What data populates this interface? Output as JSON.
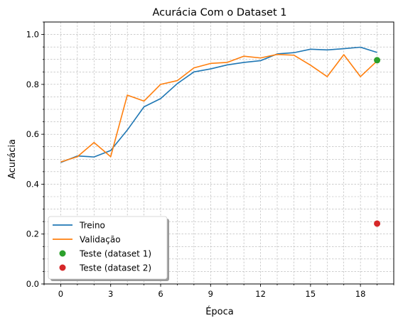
{
  "chart_data": {
    "type": "line",
    "title": "Acurácia Com o Dataset 1",
    "xlabel": "Época",
    "ylabel": "Acurácia",
    "xlim": [
      -1,
      20
    ],
    "ylim": [
      0,
      1.05
    ],
    "xticks": [
      0,
      3,
      6,
      9,
      12,
      15,
      18
    ],
    "yticks": [
      0.0,
      0.2,
      0.4,
      0.6,
      0.8,
      1.0
    ],
    "xtick_labels": [
      "0",
      "3",
      "6",
      "9",
      "12",
      "15",
      "18"
    ],
    "ytick_labels": [
      "0.0",
      "0.2",
      "0.4",
      "0.6",
      "0.8",
      "1.0"
    ],
    "grid": true,
    "legend_position": "lower-left",
    "x": [
      0,
      1,
      2,
      3,
      4,
      5,
      6,
      7,
      8,
      9,
      10,
      11,
      12,
      13,
      14,
      15,
      16,
      17,
      18,
      19
    ],
    "series": [
      {
        "name": "Treino",
        "kind": "line",
        "color": "#1f77b4",
        "values": [
          0.487,
          0.513,
          0.509,
          0.535,
          0.617,
          0.71,
          0.743,
          0.803,
          0.85,
          0.862,
          0.878,
          0.888,
          0.895,
          0.922,
          0.927,
          0.941,
          0.938,
          0.943,
          0.949,
          0.928
        ]
      },
      {
        "name": "Validação",
        "kind": "line",
        "color": "#ff7f0e",
        "values": [
          0.489,
          0.51,
          0.567,
          0.51,
          0.757,
          0.733,
          0.8,
          0.815,
          0.866,
          0.884,
          0.888,
          0.913,
          0.906,
          0.92,
          0.917,
          0.877,
          0.831,
          0.919,
          0.831,
          0.894
        ]
      },
      {
        "name": "Teste (dataset 1)",
        "kind": "point",
        "color": "#2ca02c",
        "x": 19,
        "value": 0.897
      },
      {
        "name": "Teste (dataset 2)",
        "kind": "point",
        "color": "#d62728",
        "x": 19,
        "value": 0.242
      }
    ]
  }
}
